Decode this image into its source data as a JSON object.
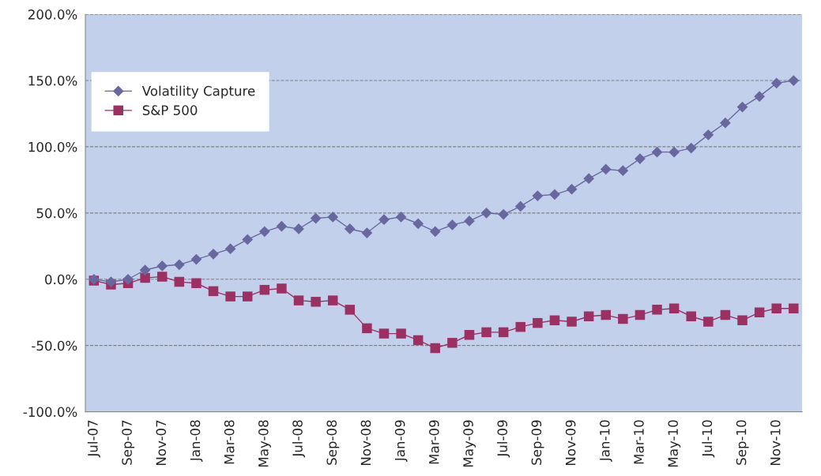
{
  "chart_data": {
    "type": "line",
    "categories": [
      "Jul-07",
      null,
      "Sep-07",
      null,
      "Nov-07",
      null,
      "Jan-08",
      null,
      "Mar-08",
      null,
      "May-08",
      null,
      "Jul-08",
      null,
      "Sep-08",
      null,
      "Nov-08",
      null,
      "Jan-09",
      null,
      "Mar-09",
      null,
      "May-09",
      null,
      "Jul-09",
      null,
      "Sep-09",
      null,
      "Nov-09",
      null,
      "Jan-10",
      null,
      "Mar-10",
      null,
      "May-10",
      null,
      "Jul-10",
      null,
      "Sep-10",
      null,
      "Nov-10",
      null
    ],
    "series": [
      {
        "name": "Volatility Capture",
        "color": "#68689f",
        "marker": "diamond",
        "values": [
          0,
          -2,
          0,
          7,
          10,
          11,
          15,
          19,
          23,
          30,
          36,
          40,
          38,
          46,
          47,
          38,
          35,
          45,
          47,
          42,
          36,
          41,
          44,
          50,
          49,
          55,
          63,
          64,
          68,
          76,
          83,
          82,
          91,
          96,
          96,
          99,
          109,
          118,
          130,
          138,
          148,
          150
        ]
      },
      {
        "name": "S&P 500",
        "color": "#9b3163",
        "marker": "square",
        "values": [
          -1,
          -4,
          -3,
          1,
          2,
          -2,
          -3,
          -9,
          -13,
          -13,
          -8,
          -7,
          -16,
          -17,
          -16,
          -23,
          -37,
          -41,
          -41,
          -46,
          -52,
          -48,
          -42,
          -40,
          -40,
          -36,
          -33,
          -31,
          -32,
          -28,
          -27,
          -30,
          -27,
          -23,
          -22,
          -28,
          -32,
          -27,
          -31,
          -25,
          -22,
          -22
        ]
      }
    ],
    "ylim": [
      -100,
      200
    ],
    "yticks": [
      {
        "value": -100,
        "label": "-100.0%"
      },
      {
        "value": -50,
        "label": "-50.0%"
      },
      {
        "value": 0,
        "label": "0.0%"
      },
      {
        "value": 50,
        "label": "50.0%"
      },
      {
        "value": 100,
        "label": "100.0%"
      },
      {
        "value": 150,
        "label": "150.0%"
      },
      {
        "value": 200,
        "label": "200.0%"
      }
    ],
    "grid": "y",
    "legend": "top left"
  }
}
